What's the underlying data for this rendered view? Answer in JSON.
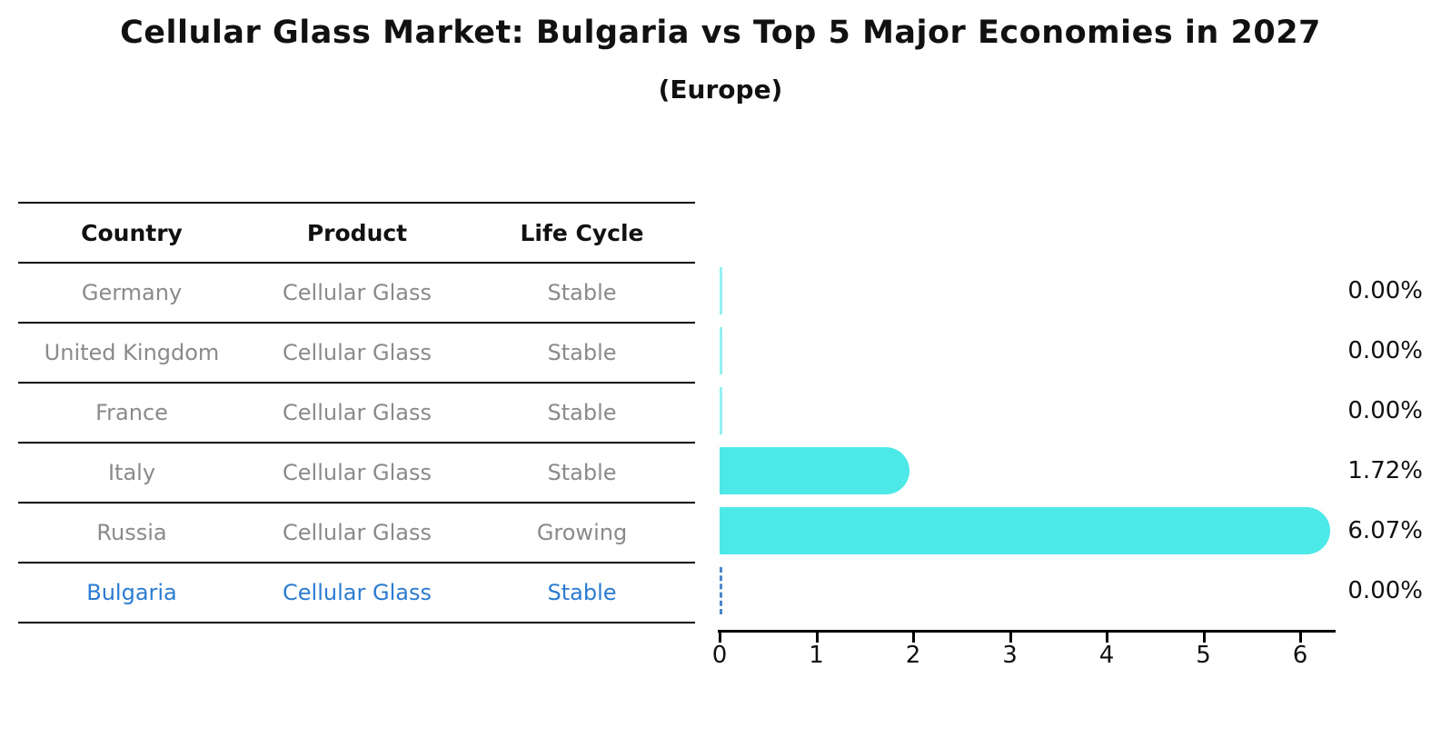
{
  "title": "Cellular Glass Market: Bulgaria vs Top 5 Major Economies in 2027",
  "subtitle": "(Europe)",
  "table": {
    "headers": {
      "country": "Country",
      "product": "Product",
      "life_cycle": "Life Cycle"
    },
    "rows": [
      {
        "country": "Germany",
        "product": "Cellular Glass",
        "life_cycle": "Stable",
        "highlight": false
      },
      {
        "country": "United Kingdom",
        "product": "Cellular Glass",
        "life_cycle": "Stable",
        "highlight": false
      },
      {
        "country": "France",
        "product": "Cellular Glass",
        "life_cycle": "Stable",
        "highlight": false
      },
      {
        "country": "Italy",
        "product": "Cellular Glass",
        "life_cycle": "Stable",
        "highlight": false
      },
      {
        "country": "Russia",
        "product": "Cellular Glass",
        "life_cycle": "Growing",
        "highlight": false
      },
      {
        "country": "Bulgaria",
        "product": "Cellular Glass",
        "life_cycle": "Stable",
        "highlight": true
      }
    ]
  },
  "chart_data": {
    "type": "bar",
    "orientation": "horizontal",
    "title": "Cellular Glass Market: Bulgaria vs Top 5 Major Economies in 2027 (Europe)",
    "categories": [
      "Germany",
      "United Kingdom",
      "France",
      "Italy",
      "Russia",
      "Bulgaria"
    ],
    "values": [
      0.0,
      0.0,
      0.0,
      1.72,
      6.07,
      0.0
    ],
    "value_labels": [
      "0.00%",
      "0.00%",
      "0.00%",
      "1.72%",
      "6.07%",
      "0.00%"
    ],
    "x_ticks": [
      "0",
      "1",
      "2",
      "3",
      "4",
      "5",
      "6"
    ],
    "xlim": [
      0,
      6.4
    ],
    "grid": false,
    "legend": false,
    "bar_color": "#4de8e8",
    "highlight_index": 5,
    "highlight_line_color": "#4a86c8",
    "xlabel": "",
    "ylabel": ""
  },
  "colors": {
    "bar_cyan": "#4de8e8",
    "highlight_blue": "#2b7bd1",
    "row_gray": "#8a8a8a",
    "axis_black": "#000000"
  }
}
